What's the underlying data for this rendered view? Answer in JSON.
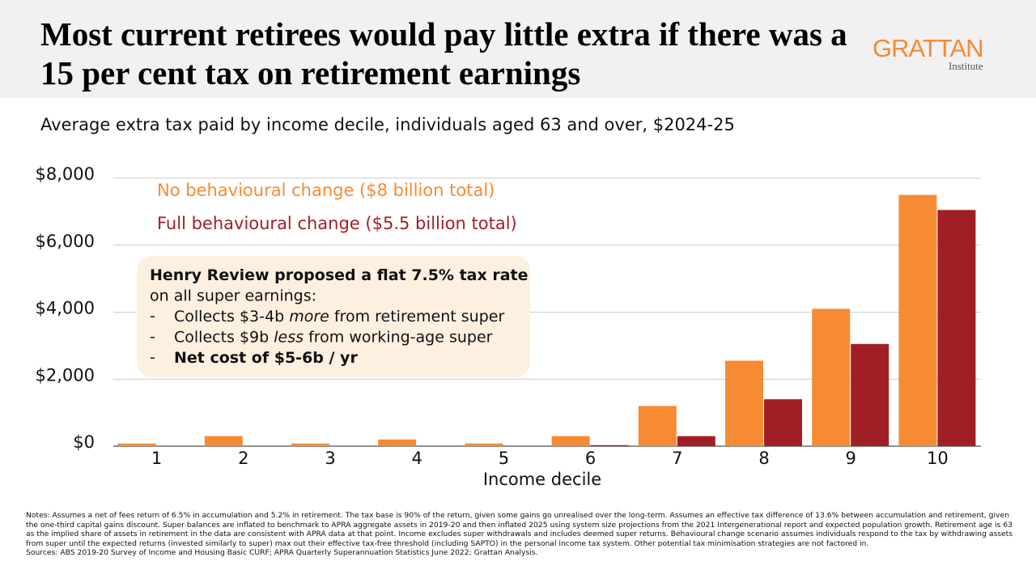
{
  "brand": {
    "name": "GRATTAN",
    "sub": "Institute"
  },
  "chart_data": {
    "type": "bar",
    "title": "Most current retirees would pay little extra if there was a 15 per cent tax on retirement earnings",
    "subtitle": "Average extra tax paid by income decile, individuals aged 63 and over, $2024-25",
    "x_label": "Income decile",
    "categories": [
      "1",
      "2",
      "3",
      "4",
      "5",
      "6",
      "7",
      "8",
      "9",
      "10"
    ],
    "series": [
      {
        "name": "No behavioural change ($8 billion total)",
        "color": "#f68b33",
        "values": [
          80,
          300,
          80,
          200,
          80,
          300,
          1200,
          2550,
          4100,
          7500
        ]
      },
      {
        "name": "Full behavioural change ($5.5 billion total)",
        "color": "#a01f26",
        "values": [
          0,
          0,
          0,
          0,
          0,
          30,
          300,
          1400,
          3050,
          7050
        ]
      }
    ],
    "ylim": [
      0,
      8000
    ],
    "yticks": [
      {
        "value": 0,
        "label": "$0"
      },
      {
        "value": 2000,
        "label": "$2,000"
      },
      {
        "value": 4000,
        "label": "$4,000"
      },
      {
        "value": 6000,
        "label": "$6,000"
      },
      {
        "value": 8000,
        "label": "$8,000"
      }
    ],
    "grid": true,
    "annotation": {
      "lines": [
        {
          "segments": [
            {
              "text": "Henry Review proposed a flat 7.5% tax rate",
              "weight": "bold"
            }
          ]
        },
        {
          "segments": [
            {
              "text": "on all super earnings:"
            }
          ]
        },
        {
          "bullet": "-",
          "segments": [
            {
              "text": "Collects $3-4b "
            },
            {
              "text": "more",
              "style": "italic"
            },
            {
              "text": " from retirement super"
            }
          ]
        },
        {
          "bullet": "-",
          "segments": [
            {
              "text": "Collects $9b "
            },
            {
              "text": "less",
              "style": "italic"
            },
            {
              "text": " from working-age super"
            }
          ]
        },
        {
          "bullet": "-",
          "segments": [
            {
              "text": "Net cost of $5-6b / yr",
              "weight": "bold"
            }
          ]
        }
      ]
    },
    "notes": "Notes: Assumes a net of fees return of 6.5% in accumulation and 5.2% in retirement. The tax base is 90% of the return, given some gains go unrealised over the long-term. Assumes an effective tax difference of 13.6% between accumulation and retirement, given the one-third capital gains discount. Super balances are inflated to benchmark to APRA aggregate assets in 2019-20 and then inflated 2025 using system size projections from the 2021 Intergenerational report and expected population growth. Retirement age is 63 as the implied share of assets in retirement in the data are consistent with APRA data at that point. Income excludes super withdrawals and includes deemed super returns. Behavioural change scenario assumes individuals respond to the tax by withdrawing assets from super until the expected returns (invested similarly to super) max out their effective tax-free threshold (including SAPTO) in the personal income tax system. Other potential tax minimisation strategies are not factored in.",
    "sources": "Sources: ABS 2019-20 Survey of Income and Housing Basic CURF; APRA Quarterly Superannuation Statistics June 2022; Grattan Analysis."
  }
}
